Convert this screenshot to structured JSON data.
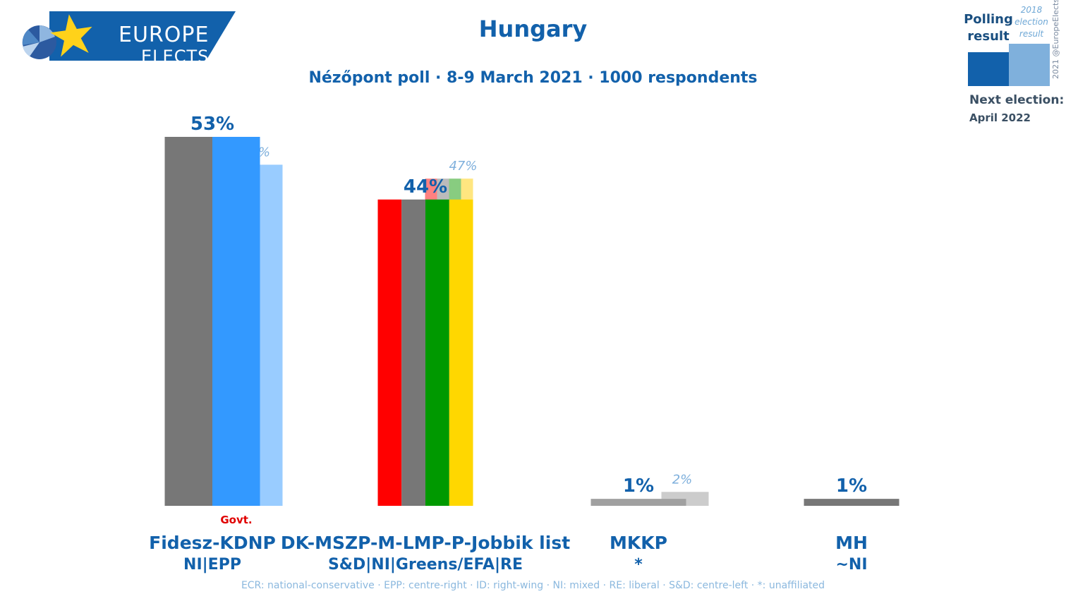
{
  "header": {
    "title": "Hungary",
    "subtitle": "Nézőpont poll · 8-9 March 2021 · 1000 respondents"
  },
  "logo": {
    "line1": "EUROPE",
    "line2": "ELECTS"
  },
  "legend": {
    "polling_label": "Polling result",
    "previous_label": "2018 election result",
    "next_election_label": "Next election:",
    "next_election_date": "April 2022",
    "copyright": "2021 @EuropeElects",
    "poll_color": "#1261ab",
    "previous_color": "#7fb0dc"
  },
  "footnote": "ECR: national-conservative · EPP: centre-right · ID: right-wing · NI: mixed · RE: liberal · S&D: centre-left · *: unaffiliated",
  "chart_data": {
    "type": "bar",
    "title": "Hungary",
    "subtitle": "Nézőpont poll · 8-9 March 2021 · 1000 respondents",
    "ylim": [
      0,
      53
    ],
    "grid": false,
    "legend_position": "top-right",
    "categories": [
      "Fidesz-KDNP",
      "DK-MSZP-M-LMP-P-Jobbik list",
      "MKKP",
      "MH"
    ],
    "parties": [
      {
        "name": "Fidesz-KDNP",
        "group": "NI|EPP",
        "note": "Govt.",
        "poll": 53,
        "poll_label": "53%",
        "previous": 49,
        "previous_label": "49%",
        "poll_colors": [
          "#777777",
          "#3399ff"
        ],
        "previous_colors": [
          "#99ccff"
        ]
      },
      {
        "name": "DK-MSZP-M-LMP-P-Jobbik list",
        "group": "S&D|NI|Greens/EFA|RE",
        "note": "",
        "poll": 44,
        "poll_label": "44%",
        "previous": 47,
        "previous_label": "47%",
        "poll_colors": [
          "#ff0000",
          "#777777",
          "#009900",
          "#ffd700"
        ],
        "previous_colors": [
          "#ff8080",
          "#bbbbbb",
          "#88cc80",
          "#ffe680"
        ]
      },
      {
        "name": "MKKP",
        "group": "*",
        "note": "",
        "poll": 1,
        "poll_label": "1%",
        "previous": 2,
        "previous_label": "2%",
        "poll_colors": [
          "#a0a0a0"
        ],
        "previous_colors": [
          "#cccccc"
        ]
      },
      {
        "name": "MH",
        "group": "~NI",
        "note": "",
        "poll": 1,
        "poll_label": "1%",
        "previous": null,
        "previous_label": "",
        "poll_colors": [
          "#777777"
        ],
        "previous_colors": []
      }
    ]
  }
}
